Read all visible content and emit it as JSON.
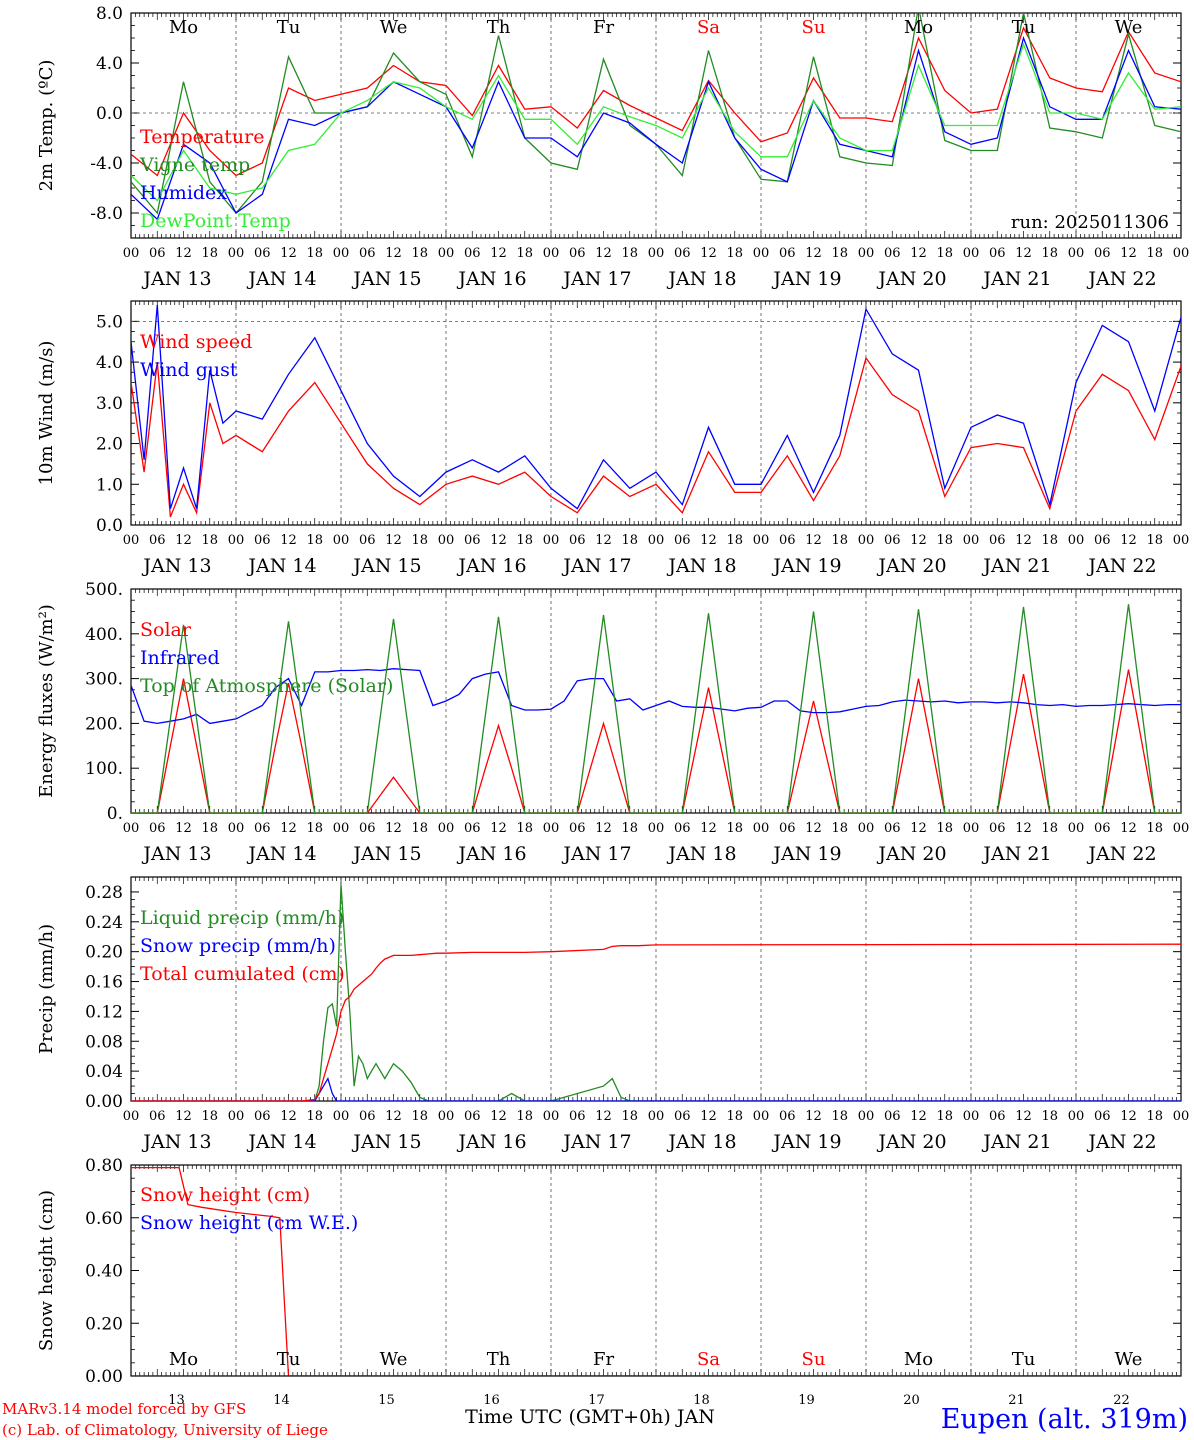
{
  "days": [
    "Mo",
    "Tu",
    "We",
    "Th",
    "Fr",
    "Sa",
    "Su",
    "Mo",
    "Tu",
    "We"
  ],
  "day_colors": [
    "#000000",
    "#000000",
    "#000000",
    "#000000",
    "#000000",
    "#ff0000",
    "#ff0000",
    "#000000",
    "#000000",
    "#000000"
  ],
  "dates": [
    "JAN 13",
    "JAN 14",
    "JAN 15",
    "JAN 16",
    "JAN 17",
    "JAN 18",
    "JAN 19",
    "JAN 20",
    "JAN 21",
    "JAN 22"
  ],
  "hour_labels": [
    "00",
    "06",
    "12",
    "18"
  ],
  "last_hour_label": "00",
  "bottom_day_numbers": [
    "13",
    "14",
    "15",
    "16",
    "17",
    "18",
    "19",
    "20",
    "21",
    "22"
  ],
  "footer": {
    "xlabel": "Time UTC (GMT+0h) JAN",
    "credit_line1": "MARv3.14 model forced by GFS",
    "credit_line2": "(c) Lab. of Climatology, University of Liege",
    "location": "Eupen (alt. 319m)"
  },
  "colors": {
    "red": "#ff0000",
    "green": "#228b22",
    "blue": "#0000ff",
    "lightgreen": "#33ee33",
    "grid": "#555555"
  },
  "chart_data": [
    {
      "type": "line",
      "ylabel": "2m Temp. (ºC)",
      "ylim": [
        -10,
        8
      ],
      "yticks": [
        -8,
        -4,
        0,
        4,
        8
      ],
      "ytick_labels": [
        "-8.0",
        "-4.0",
        "0.0",
        "4.0",
        "8.0"
      ],
      "ref_line": 0,
      "annotation": "run: 2025011306",
      "x": [
        0,
        6,
        12,
        18,
        24,
        30,
        36,
        42,
        48,
        54,
        60,
        66,
        72,
        78,
        84,
        90,
        96,
        102,
        108,
        114,
        120,
        126,
        132,
        138,
        144,
        150,
        156,
        162,
        168,
        174,
        180,
        186,
        192,
        198,
        204,
        210,
        216,
        222,
        228,
        234,
        240
      ],
      "series": [
        {
          "name": "Temperature",
          "color": "red",
          "values": [
            -3.3,
            -5.0,
            0.0,
            -3.0,
            -5.0,
            -4.0,
            2.0,
            1.0,
            1.5,
            2.0,
            3.8,
            2.5,
            2.2,
            -0.2,
            3.8,
            0.3,
            0.5,
            -1.2,
            1.8,
            0.6,
            -0.4,
            -1.4,
            2.6,
            0.0,
            -2.3,
            -1.6,
            2.8,
            -0.4,
            -0.4,
            -0.7,
            6.0,
            1.8,
            0.0,
            0.3,
            6.8,
            2.8,
            2.0,
            1.7,
            6.5,
            3.2,
            2.5
          ]
        },
        {
          "name": "Vigne temp",
          "color": "green",
          "values": [
            -5.5,
            -8.0,
            2.5,
            -5.5,
            -8.0,
            -5.5,
            4.5,
            0.0,
            0.0,
            0.5,
            4.8,
            2.5,
            1.5,
            -3.5,
            6.2,
            -2.0,
            -4.0,
            -4.5,
            4.3,
            -1.0,
            -2.5,
            -5.0,
            5.0,
            -2.0,
            -5.3,
            -5.5,
            4.5,
            -3.5,
            -4.0,
            -4.2,
            8.5,
            -2.2,
            -3.0,
            -3.0,
            8.0,
            -1.2,
            -1.5,
            -2.0,
            6.3,
            -1.0,
            -1.5
          ]
        },
        {
          "name": "Humidex",
          "color": "blue",
          "values": [
            -6.5,
            -8.5,
            -2.5,
            -4.0,
            -8.0,
            -6.5,
            -0.5,
            -1.0,
            0.0,
            0.5,
            2.5,
            1.5,
            0.5,
            -2.8,
            2.5,
            -2.0,
            -2.0,
            -3.5,
            0.0,
            -0.8,
            -2.5,
            -4.0,
            2.5,
            -2.0,
            -4.5,
            -5.5,
            1.0,
            -2.5,
            -3.0,
            -3.5,
            5.0,
            -1.5,
            -2.5,
            -2.0,
            6.0,
            0.5,
            -0.5,
            -0.5,
            5.0,
            0.5,
            0.3
          ]
        },
        {
          "name": "DewPoint Temp",
          "color": "lightgreen",
          "values": [
            -5.0,
            -7.0,
            -3.0,
            -6.0,
            -6.5,
            -6.0,
            -3.0,
            -2.5,
            0.0,
            1.0,
            2.5,
            2.0,
            0.5,
            -0.5,
            3.0,
            -0.5,
            -0.5,
            -2.5,
            0.5,
            -0.3,
            -1.0,
            -2.0,
            2.0,
            -1.5,
            -3.5,
            -3.5,
            1.0,
            -2.0,
            -3.0,
            -3.0,
            3.8,
            -1.0,
            -1.0,
            -1.0,
            5.5,
            0.0,
            0.0,
            -0.5,
            3.2,
            0.3,
            0.5
          ]
        }
      ]
    },
    {
      "type": "line",
      "ylabel": "10m Wind (m/s)",
      "ylim": [
        0,
        5.5
      ],
      "yticks": [
        0,
        1,
        2,
        3,
        4,
        5
      ],
      "ytick_labels": [
        "0.0",
        "1.0",
        "2.0",
        "3.0",
        "4.0",
        "5.0"
      ],
      "ref_line": 5,
      "x": [
        0,
        3,
        6,
        9,
        12,
        15,
        18,
        21,
        24,
        30,
        36,
        42,
        48,
        54,
        60,
        66,
        72,
        78,
        84,
        90,
        96,
        102,
        108,
        114,
        120,
        126,
        132,
        138,
        144,
        150,
        156,
        162,
        168,
        174,
        180,
        186,
        192,
        198,
        204,
        210,
        216,
        222,
        228,
        234,
        240
      ],
      "series": [
        {
          "name": "Wind speed",
          "color": "red",
          "values": [
            3.5,
            1.3,
            4.0,
            0.2,
            1.0,
            0.3,
            3.0,
            2.0,
            2.2,
            1.8,
            2.8,
            3.5,
            2.5,
            1.5,
            0.9,
            0.5,
            1.0,
            1.2,
            1.0,
            1.3,
            0.7,
            0.3,
            1.2,
            0.7,
            1.0,
            0.3,
            1.8,
            0.8,
            0.8,
            1.7,
            0.6,
            1.7,
            4.1,
            3.2,
            2.8,
            0.7,
            1.9,
            2.0,
            1.9,
            0.4,
            2.8,
            3.7,
            3.3,
            2.1,
            3.9
          ]
        },
        {
          "name": "Wind gust",
          "color": "blue",
          "values": [
            4.5,
            1.6,
            5.4,
            0.4,
            1.4,
            0.4,
            3.8,
            2.5,
            2.8,
            2.6,
            3.7,
            4.6,
            3.3,
            2.0,
            1.2,
            0.7,
            1.3,
            1.6,
            1.3,
            1.7,
            0.9,
            0.4,
            1.6,
            0.9,
            1.3,
            0.5,
            2.4,
            1.0,
            1.0,
            2.2,
            0.8,
            2.2,
            5.3,
            4.2,
            3.8,
            0.9,
            2.4,
            2.7,
            2.5,
            0.5,
            3.5,
            4.9,
            4.5,
            2.8,
            5.1
          ]
        }
      ]
    },
    {
      "type": "line",
      "ylabel": "Energy fluxes (W/m²)",
      "ylim": [
        0,
        500
      ],
      "yticks": [
        0,
        100,
        200,
        300,
        400,
        500
      ],
      "ytick_labels": [
        "0.",
        "100.",
        "200.",
        "300.",
        "400.",
        "500."
      ],
      "x": [
        0,
        3,
        6,
        9,
        12,
        15,
        18,
        21,
        24,
        27,
        30,
        33,
        36,
        39,
        42,
        45,
        48,
        51,
        54,
        57,
        60,
        63,
        66,
        69,
        72,
        75,
        78,
        81,
        84,
        87,
        90,
        93,
        96,
        99,
        102,
        105,
        108,
        111,
        114,
        117,
        120,
        123,
        126,
        129,
        132,
        135,
        138,
        141,
        144,
        147,
        150,
        153,
        156,
        159,
        162,
        165,
        168,
        171,
        174,
        177,
        180,
        183,
        186,
        189,
        192,
        195,
        198,
        201,
        204,
        207,
        210,
        213,
        216,
        219,
        222,
        225,
        228,
        231,
        234,
        237,
        240
      ],
      "series": [
        {
          "name": "Solar",
          "color": "red",
          "values": [
            0,
            0,
            0,
            150,
            300,
            150,
            0,
            0,
            0,
            0,
            0,
            150,
            290,
            150,
            0,
            0,
            0,
            0,
            0,
            40,
            80,
            40,
            0,
            0,
            0,
            0,
            0,
            100,
            195,
            100,
            0,
            0,
            0,
            0,
            0,
            100,
            200,
            100,
            0,
            0,
            0,
            0,
            0,
            140,
            280,
            140,
            0,
            0,
            0,
            0,
            0,
            125,
            250,
            125,
            0,
            0,
            0,
            0,
            0,
            150,
            300,
            150,
            0,
            0,
            0,
            0,
            0,
            155,
            310,
            155,
            0,
            0,
            0,
            0,
            0,
            160,
            320,
            160,
            0,
            0,
            0
          ]
        },
        {
          "name": "Infrared",
          "color": "blue",
          "values": [
            285,
            205,
            200,
            205,
            210,
            220,
            200,
            205,
            210,
            225,
            240,
            280,
            300,
            240,
            315,
            315,
            318,
            318,
            320,
            318,
            322,
            320,
            318,
            240,
            250,
            265,
            300,
            310,
            315,
            240,
            230,
            230,
            232,
            250,
            295,
            300,
            300,
            250,
            255,
            230,
            240,
            250,
            238,
            236,
            236,
            232,
            228,
            234,
            236,
            250,
            250,
            228,
            224,
            224,
            226,
            232,
            238,
            240,
            248,
            252,
            250,
            248,
            250,
            246,
            248,
            248,
            246,
            248,
            246,
            242,
            240,
            242,
            238,
            240,
            240,
            242,
            244,
            242,
            240,
            242,
            242
          ]
        },
        {
          "name": "Top of Atmosphere (Solar)",
          "color": "green",
          "values": [
            0,
            0,
            0,
            210,
            420,
            210,
            0,
            0,
            0,
            0,
            0,
            215,
            428,
            215,
            0,
            0,
            0,
            0,
            0,
            217,
            433,
            217,
            0,
            0,
            0,
            0,
            0,
            219,
            438,
            219,
            0,
            0,
            0,
            0,
            0,
            221,
            442,
            221,
            0,
            0,
            0,
            0,
            0,
            223,
            446,
            223,
            0,
            0,
            0,
            0,
            0,
            225,
            450,
            225,
            0,
            0,
            0,
            0,
            0,
            227,
            455,
            227,
            0,
            0,
            0,
            0,
            0,
            230,
            460,
            230,
            0,
            0,
            0,
            0,
            0,
            233,
            466,
            233,
            0,
            0,
            0
          ]
        }
      ]
    },
    {
      "type": "line",
      "ylabel": "Precip (mm/h)",
      "ylim": [
        0,
        0.3
      ],
      "yticks": [
        0,
        0.04,
        0.08,
        0.12,
        0.16,
        0.2,
        0.24,
        0.28
      ],
      "ytick_labels": [
        "0.00",
        "0.04",
        "0.08",
        "0.12",
        "0.16",
        "0.20",
        "0.24",
        "0.28"
      ],
      "x": [
        0,
        12,
        24,
        36,
        39,
        42,
        43,
        44,
        45,
        46,
        47,
        48,
        49,
        50,
        51,
        52,
        53,
        54,
        55,
        56,
        57,
        58,
        60,
        62,
        64,
        66,
        68,
        70,
        72,
        78,
        84,
        87,
        90,
        96,
        108,
        110,
        112,
        114,
        116,
        120,
        240
      ],
      "series": [
        {
          "name": "Liquid precip (mm/h)",
          "color": "green",
          "values": [
            0,
            0,
            0,
            0,
            0,
            0,
            0.02,
            0.08,
            0.125,
            0.13,
            0.1,
            0.29,
            0.2,
            0.12,
            0.02,
            0.06,
            0.05,
            0.03,
            0.04,
            0.05,
            0.04,
            0.03,
            0.05,
            0.04,
            0.025,
            0.005,
            0,
            0,
            0,
            0,
            0,
            0.01,
            0,
            0,
            0.02,
            0.03,
            0.005,
            0,
            0,
            0,
            0
          ]
        },
        {
          "name": "Snow precip (mm/h)",
          "color": "blue",
          "values": [
            0,
            0,
            0,
            0,
            0,
            0,
            0.01,
            0.02,
            0.03,
            0.01,
            0,
            0,
            0,
            0,
            0,
            0,
            0,
            0,
            0,
            0,
            0,
            0,
            0,
            0,
            0,
            0,
            0,
            0,
            0,
            0,
            0,
            0,
            0,
            0,
            0,
            0,
            0,
            0,
            0,
            0,
            0
          ]
        },
        {
          "name": "Total cumulated (cm)",
          "color": "red",
          "values": [
            0,
            0,
            0,
            0,
            0,
            0.002,
            0.01,
            0.03,
            0.05,
            0.07,
            0.09,
            0.12,
            0.135,
            0.14,
            0.15,
            0.155,
            0.16,
            0.165,
            0.17,
            0.178,
            0.185,
            0.19,
            0.195,
            0.195,
            0.195,
            0.196,
            0.197,
            0.198,
            0.198,
            0.199,
            0.199,
            0.199,
            0.199,
            0.2,
            0.203,
            0.207,
            0.208,
            0.208,
            0.208,
            0.209,
            0.21
          ]
        }
      ]
    },
    {
      "type": "line",
      "ylabel": "Snow height (cm)",
      "ylim": [
        0,
        0.8
      ],
      "yticks": [
        0,
        0.2,
        0.4,
        0.6,
        0.8
      ],
      "ytick_labels": [
        "0.00",
        "0.20",
        "0.40",
        "0.60",
        "0.80"
      ],
      "x": [
        0,
        6,
        11,
        13,
        16,
        24,
        32,
        34,
        35,
        36,
        240
      ],
      "series": [
        {
          "name": "Snow height (cm)",
          "color": "red",
          "values": [
            0.79,
            0.79,
            0.79,
            0.65,
            0.64,
            0.62,
            0.605,
            0.6,
            0.3,
            0,
            0
          ]
        },
        {
          "name": "Snow height (cm W.E.)",
          "color": "blue",
          "values": [
            0,
            0,
            0,
            0,
            0,
            0,
            0,
            0,
            0,
            0,
            0
          ]
        }
      ]
    }
  ]
}
